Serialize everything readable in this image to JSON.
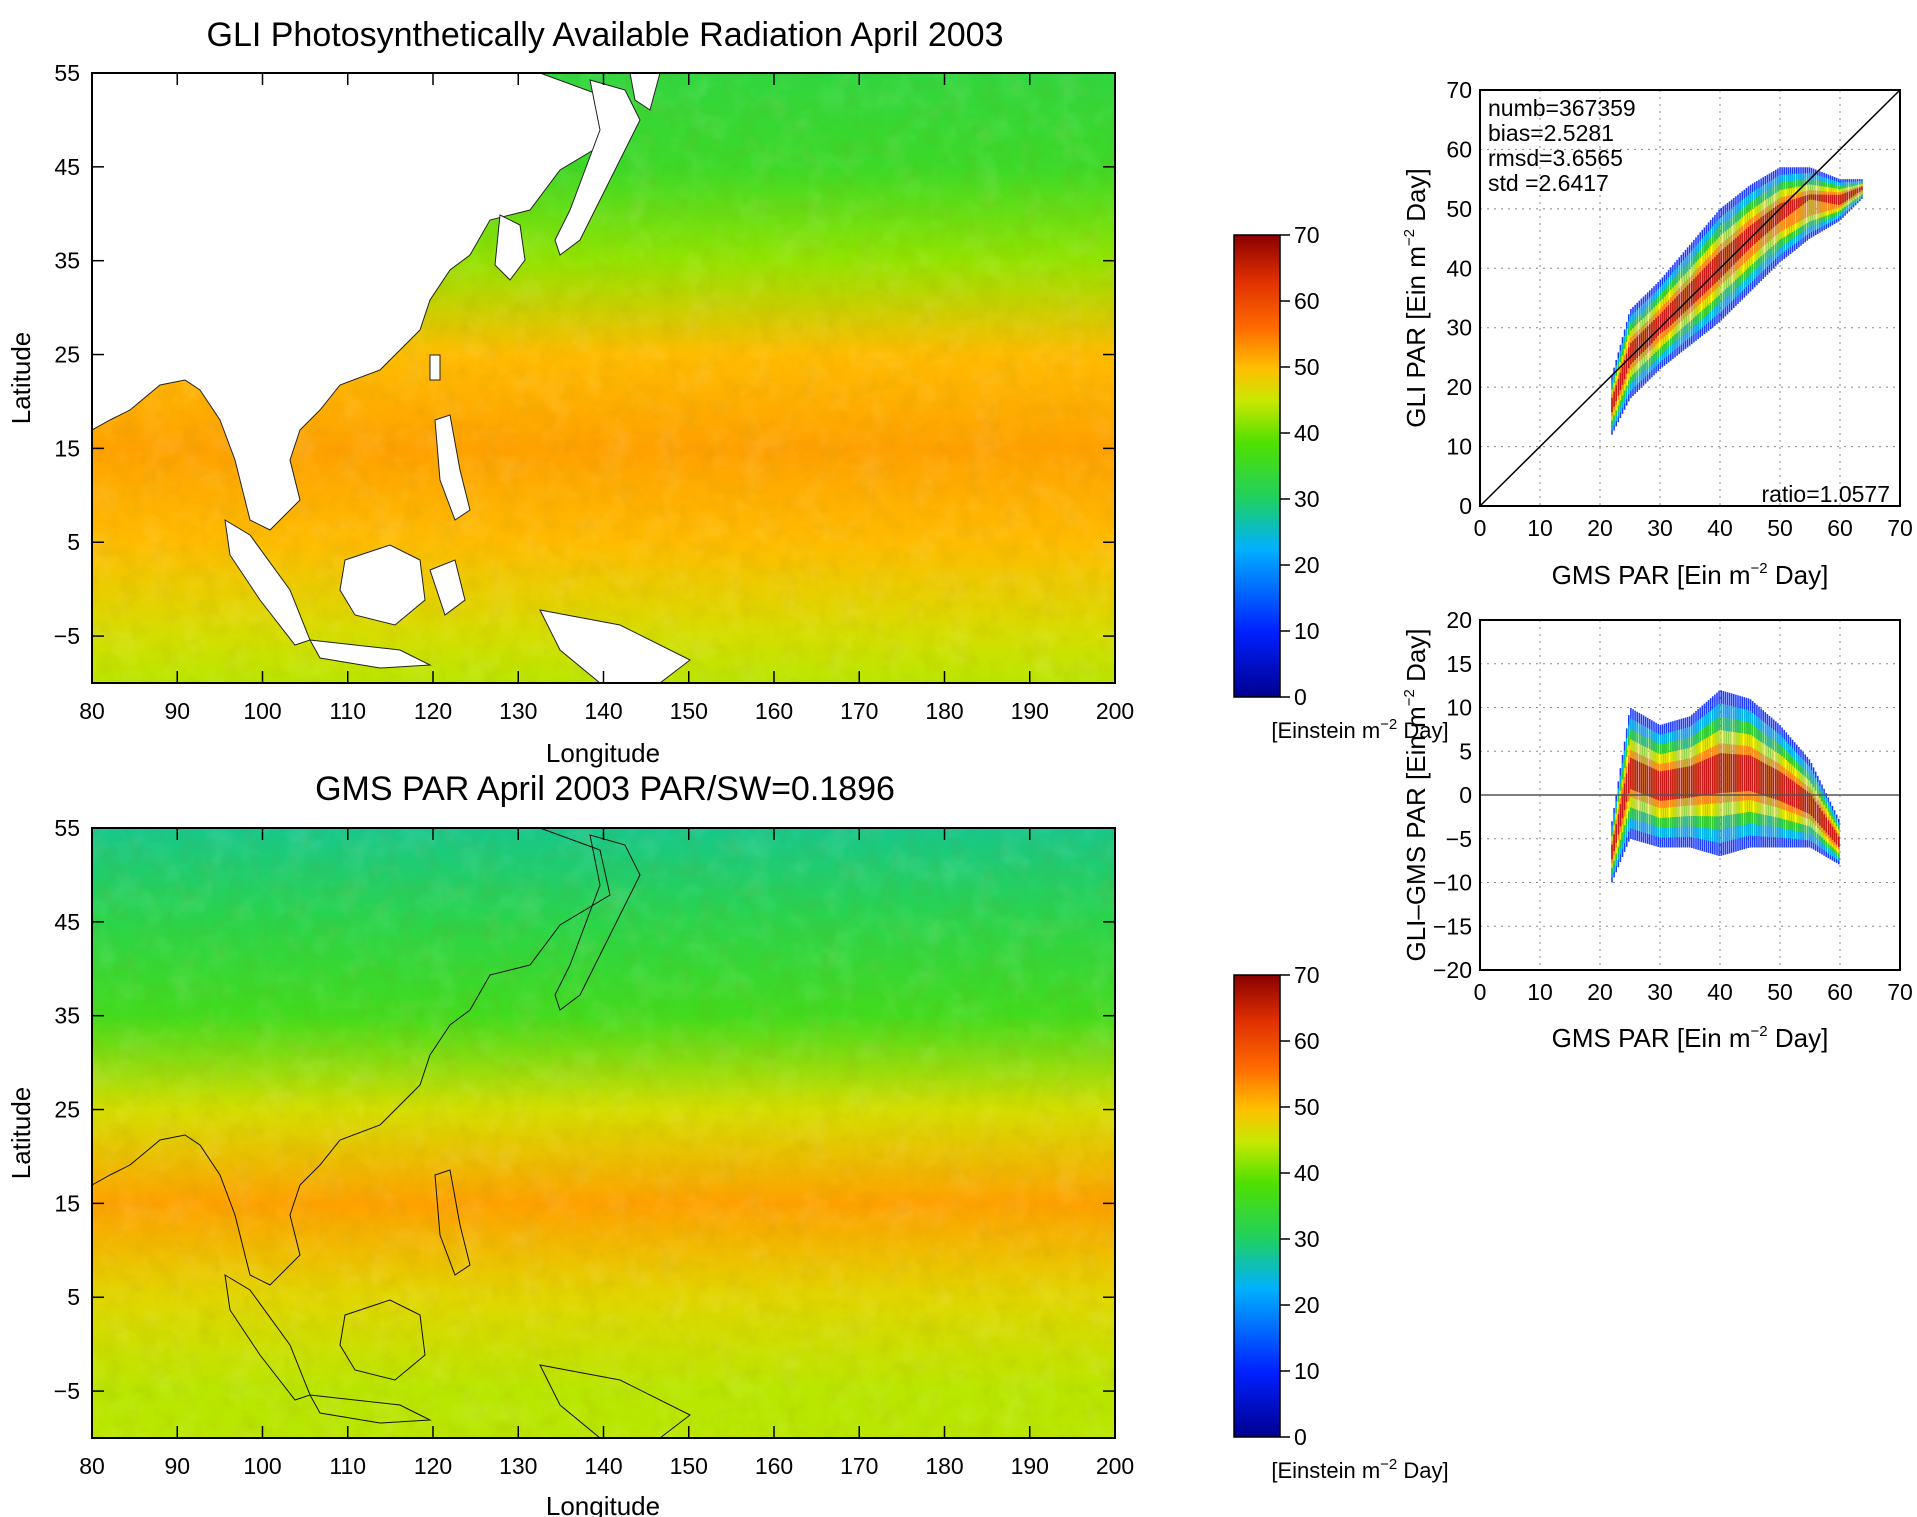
{
  "chart_data": [
    {
      "type": "heatmap",
      "title": "GLI Photosynthetically Available Radiation April 2003",
      "xlabel": "Longitude",
      "ylabel": "Latitude",
      "xlim": [
        80,
        200
      ],
      "ylim": [
        -10,
        55
      ],
      "xticks": [
        "80",
        "90",
        "100",
        "110",
        "120",
        "130",
        "140",
        "150",
        "160",
        "170",
        "180",
        "190",
        "200"
      ],
      "yticks": [
        "55",
        "45",
        "35",
        "25",
        "15",
        "5",
        "−5"
      ],
      "colorbar": {
        "range": [
          0,
          70
        ],
        "ticks": [
          "70",
          "60",
          "50",
          "40",
          "30",
          "20",
          "10",
          "0"
        ],
        "label_text": "[Einstein m",
        "label_sup": "−2",
        "label_end": " Day]"
      },
      "field_bands": [
        {
          "lat": 55,
          "value": 33
        },
        {
          "lat": 45,
          "value": 35
        },
        {
          "lat": 35,
          "value": 42
        },
        {
          "lat": 25,
          "value": 50
        },
        {
          "lat": 15,
          "value": 52
        },
        {
          "lat": 5,
          "value": 50
        },
        {
          "lat": -5,
          "value": 46
        },
        {
          "lat": -10,
          "value": 44
        }
      ],
      "land_mask": true
    },
    {
      "type": "heatmap",
      "title": "GMS PAR April 2003  PAR/SW=0.1896",
      "xlabel": "Longitude",
      "ylabel": "Latitude",
      "xlim": [
        80,
        200
      ],
      "ylim": [
        -10,
        55
      ],
      "xticks": [
        "80",
        "90",
        "100",
        "110",
        "120",
        "130",
        "140",
        "150",
        "160",
        "170",
        "180",
        "190",
        "200"
      ],
      "yticks": [
        "55",
        "45",
        "35",
        "25",
        "15",
        "5",
        "−5"
      ],
      "colorbar": {
        "range": [
          0,
          70
        ],
        "ticks": [
          "70",
          "60",
          "50",
          "40",
          "30",
          "20",
          "10",
          "0"
        ],
        "label_text": "[Einstein m",
        "label_sup": "−2",
        "label_end": " Day]"
      },
      "field_bands": [
        {
          "lat": 55,
          "value": 28
        },
        {
          "lat": 45,
          "value": 32
        },
        {
          "lat": 35,
          "value": 36
        },
        {
          "lat": 25,
          "value": 46
        },
        {
          "lat": 15,
          "value": 52
        },
        {
          "lat": 5,
          "value": 47
        },
        {
          "lat": -5,
          "value": 44
        },
        {
          "lat": -10,
          "value": 44
        }
      ],
      "land_mask": false
    },
    {
      "type": "scatter",
      "xlabel_text": "GMS PAR [Ein m",
      "xlabel_sup": "−2",
      "xlabel_end": " Day]",
      "ylabel_text": "GLI PAR [Ein m",
      "ylabel_sup": "−2",
      "ylabel_end": " Day]",
      "xlim": [
        0,
        70
      ],
      "ylim": [
        0,
        70
      ],
      "xticks": [
        "0",
        "10",
        "20",
        "30",
        "40",
        "50",
        "60",
        "70"
      ],
      "yticks": [
        "0",
        "10",
        "20",
        "30",
        "40",
        "50",
        "60",
        "70"
      ],
      "grid": true,
      "annotations": [
        "numb=367359",
        "bias=2.5281",
        "rmsd=3.6565",
        "std =2.6417"
      ],
      "ratio_label": "ratio=1.0577",
      "reference_line": "1:1",
      "density": [
        {
          "x": 22,
          "ylo": 12,
          "yhi": 22,
          "yc": 17
        },
        {
          "x": 25,
          "ylo": 18,
          "yhi": 33,
          "yc": 26
        },
        {
          "x": 30,
          "ylo": 23,
          "yhi": 38,
          "yc": 32
        },
        {
          "x": 35,
          "ylo": 27,
          "yhi": 44,
          "yc": 36
        },
        {
          "x": 40,
          "ylo": 31,
          "yhi": 50,
          "yc": 42
        },
        {
          "x": 45,
          "ylo": 36,
          "yhi": 54,
          "yc": 47
        },
        {
          "x": 50,
          "ylo": 41,
          "yhi": 57,
          "yc": 51
        },
        {
          "x": 55,
          "ylo": 45,
          "yhi": 57,
          "yc": 54
        },
        {
          "x": 60,
          "ylo": 48,
          "yhi": 55,
          "yc": 52
        },
        {
          "x": 64,
          "ylo": 52,
          "yhi": 55,
          "yc": 54
        }
      ]
    },
    {
      "type": "scatter",
      "xlabel_text": "GMS PAR [Ein m",
      "xlabel_sup": "−2",
      "xlabel_end": " Day]",
      "ylabel_text": "GLI–GMS PAR [Ein m",
      "ylabel_sup": "−2",
      "ylabel_end": " Day]",
      "xlim": [
        0,
        70
      ],
      "ylim": [
        -20,
        20
      ],
      "xticks": [
        "0",
        "10",
        "20",
        "30",
        "40",
        "50",
        "60",
        "70"
      ],
      "yticks": [
        "20",
        "15",
        "10",
        "5",
        "0",
        "−5",
        "−10",
        "−15",
        "−20"
      ],
      "grid": true,
      "reference_line": "y=0",
      "density": [
        {
          "x": 22,
          "ylo": -10,
          "yhi": -3,
          "yc": -6
        },
        {
          "x": 25,
          "ylo": -5,
          "yhi": 10,
          "yc": 2
        },
        {
          "x": 30,
          "ylo": -6,
          "yhi": 8,
          "yc": 1
        },
        {
          "x": 35,
          "ylo": -6,
          "yhi": 9,
          "yc": 2
        },
        {
          "x": 40,
          "ylo": -7,
          "yhi": 12,
          "yc": 3
        },
        {
          "x": 45,
          "ylo": -6,
          "yhi": 11,
          "yc": 3
        },
        {
          "x": 50,
          "ylo": -6,
          "yhi": 8,
          "yc": 1
        },
        {
          "x": 55,
          "ylo": -6,
          "yhi": 4,
          "yc": -1
        },
        {
          "x": 60,
          "ylo": -8,
          "yhi": -3,
          "yc": -6
        }
      ]
    }
  ]
}
